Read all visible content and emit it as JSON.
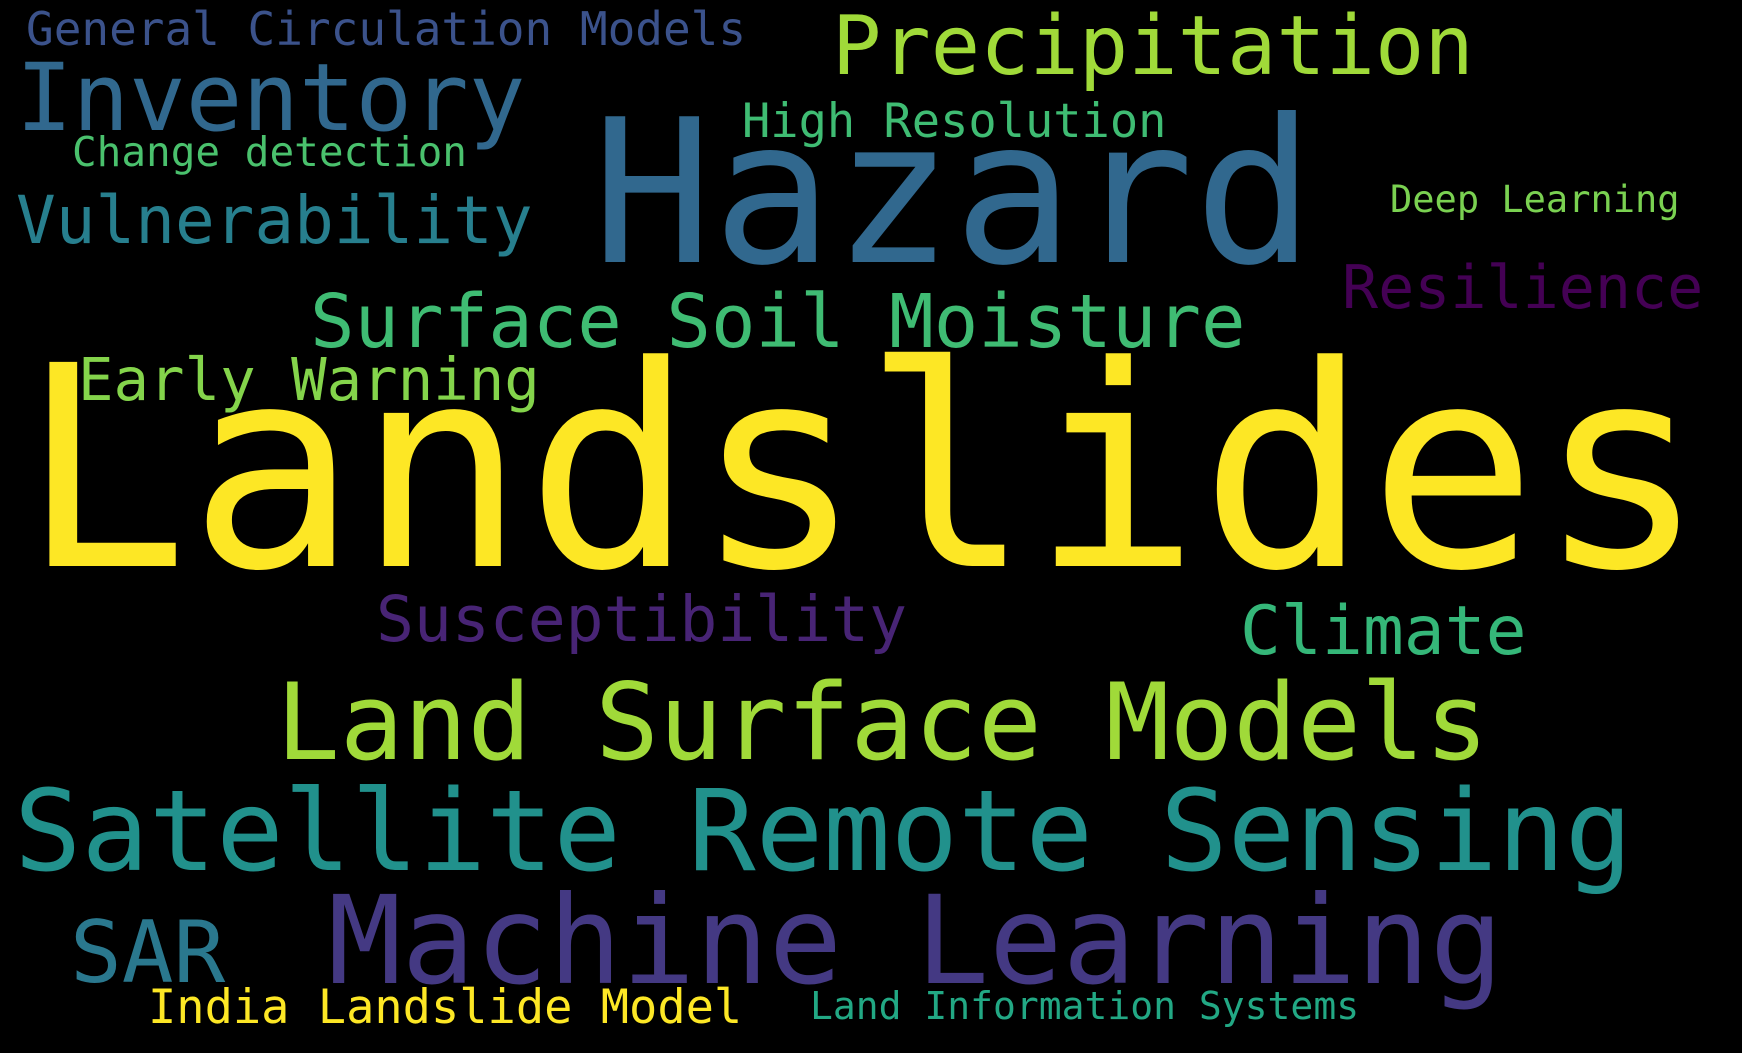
{
  "background_color": "#000000",
  "words": {
    "landslides": {
      "text": "Landslides",
      "color": "#fde725"
    },
    "hazard": {
      "text": "Hazard",
      "color": "#31688e"
    },
    "satellite_remote_sensing": {
      "text": "Satellite Remote Sensing",
      "color": "#21918c"
    },
    "machine_learning": {
      "text": "Machine Learning",
      "color": "#443983"
    },
    "land_surface_models": {
      "text": "Land Surface Models",
      "color": "#a0da39"
    },
    "precipitation": {
      "text": "Precipitation",
      "color": "#a0da39"
    },
    "inventory": {
      "text": "Inventory",
      "color": "#31688e"
    },
    "surface_soil_moisture": {
      "text": "Surface Soil Moisture",
      "color": "#3fbc73"
    },
    "vulnerability": {
      "text": "Vulnerability",
      "color": "#277f8e"
    },
    "susceptibility": {
      "text": "Susceptibility",
      "color": "#482475"
    },
    "climate": {
      "text": "Climate",
      "color": "#35b779"
    },
    "resilience": {
      "text": "Resilience",
      "color": "#440154"
    },
    "early_warning": {
      "text": "Early Warning",
      "color": "#84d44b"
    },
    "sar": {
      "text": "SAR",
      "color": "#2a788e"
    },
    "high_resolution": {
      "text": "High Resolution",
      "color": "#3fbc73"
    },
    "general_circulation_models": {
      "text": "General Circulation Models",
      "color": "#3b528b"
    },
    "change_detection": {
      "text": "Change detection",
      "color": "#4ac16d"
    },
    "deep_learning": {
      "text": "Deep Learning",
      "color": "#7ad151"
    },
    "india_landslide_model": {
      "text": "India Landslide Model",
      "color": "#fde725"
    },
    "land_information_systems": {
      "text": "Land Information Systems",
      "color": "#22a884"
    }
  }
}
